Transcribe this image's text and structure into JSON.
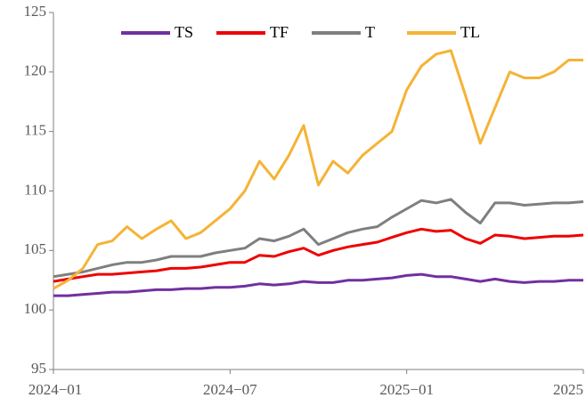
{
  "chart_data": {
    "type": "line",
    "x": [
      0,
      0.5,
      1,
      1.5,
      2,
      2.5,
      3,
      3.5,
      4,
      4.5,
      5,
      5.5,
      6,
      6.5,
      7,
      7.5,
      8,
      8.5,
      9,
      9.5,
      10,
      10.5,
      11,
      11.5,
      12,
      12.5,
      13,
      13.5,
      14,
      14.5,
      15,
      15.5,
      16,
      16.5,
      17,
      17.5,
      18
    ],
    "xlim": [
      0,
      18
    ],
    "xticks": [
      {
        "value": 0,
        "label": "2024−01"
      },
      {
        "value": 6,
        "label": "2024−07"
      },
      {
        "value": 12,
        "label": "2025−01"
      },
      {
        "value": 18,
        "label": "2025"
      }
    ],
    "ylim": [
      95,
      125
    ],
    "yticks": [
      95,
      100,
      105,
      110,
      115,
      120,
      125
    ],
    "legend": "top",
    "series": [
      {
        "name": "TS",
        "color": "#7030a0",
        "values": [
          101.2,
          101.2,
          101.3,
          101.4,
          101.5,
          101.5,
          101.6,
          101.7,
          101.7,
          101.8,
          101.8,
          101.9,
          101.9,
          102,
          102.2,
          102.1,
          102.2,
          102.4,
          102.3,
          102.3,
          102.5,
          102.5,
          102.6,
          102.7,
          102.9,
          103,
          102.8,
          102.8,
          102.6,
          102.4,
          102.6,
          102.4,
          102.3,
          102.4,
          102.4,
          102.5,
          102.5
        ]
      },
      {
        "name": "TF",
        "color": "#ee0000",
        "values": [
          102.4,
          102.6,
          102.8,
          103,
          103,
          103.1,
          103.2,
          103.3,
          103.5,
          103.5,
          103.6,
          103.8,
          104,
          104,
          104.6,
          104.5,
          104.9,
          105.2,
          104.6,
          105,
          105.3,
          105.5,
          105.7,
          106.1,
          106.5,
          106.8,
          106.6,
          106.7,
          106,
          105.6,
          106.3,
          106.2,
          106,
          106.1,
          106.2,
          106.2,
          106.3
        ]
      },
      {
        "name": "T",
        "color": "#7f7f7f",
        "values": [
          102.8,
          103,
          103.2,
          103.5,
          103.8,
          104,
          104,
          104.2,
          104.5,
          104.5,
          104.5,
          104.8,
          105,
          105.2,
          106,
          105.8,
          106.2,
          106.8,
          105.5,
          106,
          106.5,
          106.8,
          107,
          107.8,
          108.5,
          109.2,
          109,
          109.3,
          108.2,
          107.3,
          109,
          109,
          108.8,
          108.9,
          109,
          109,
          109.1
        ]
      },
      {
        "name": "TL",
        "color": "#f5b335",
        "values": [
          101.8,
          102.5,
          103.5,
          105.5,
          105.8,
          107,
          106,
          106.8,
          107.5,
          106,
          106.5,
          107.5,
          108.5,
          110,
          112.5,
          111,
          113,
          115.5,
          110.5,
          112.5,
          111.5,
          113,
          114,
          115,
          118.5,
          120.5,
          121.5,
          121.8,
          118,
          114,
          117,
          120,
          119.5,
          119.5,
          120,
          121,
          121
        ]
      }
    ]
  }
}
